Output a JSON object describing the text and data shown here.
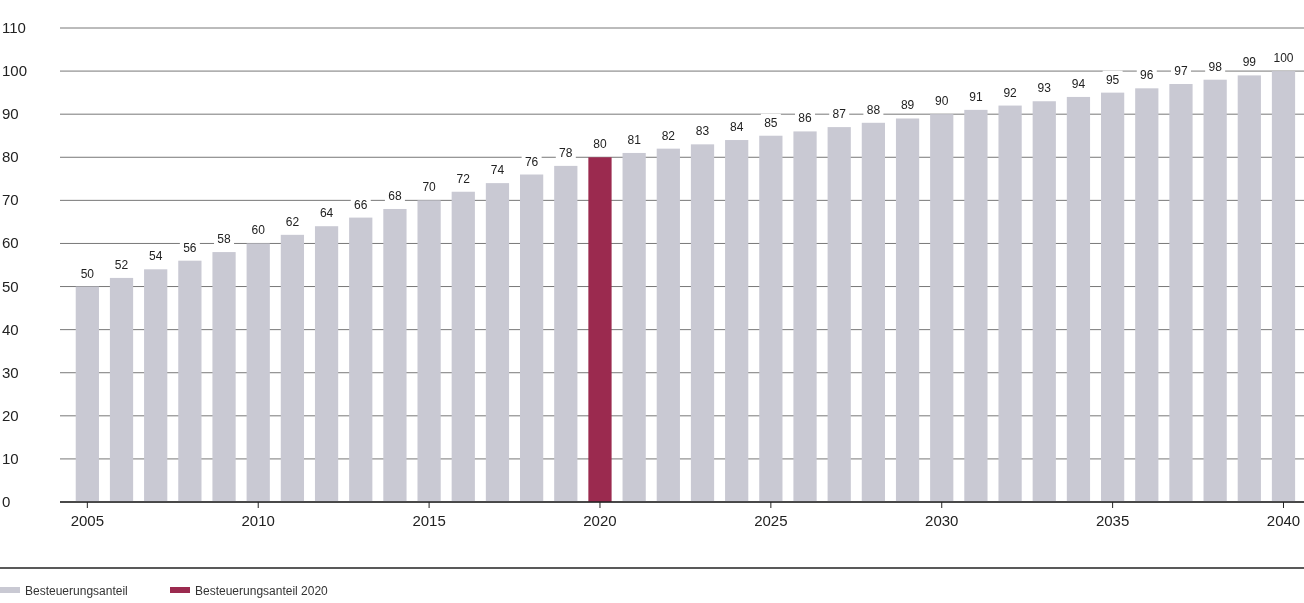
{
  "chart_data": {
    "type": "bar",
    "x": [
      2005,
      2006,
      2007,
      2008,
      2009,
      2010,
      2011,
      2012,
      2013,
      2014,
      2015,
      2016,
      2017,
      2018,
      2019,
      2020,
      2021,
      2022,
      2023,
      2024,
      2025,
      2026,
      2027,
      2028,
      2029,
      2030,
      2031,
      2032,
      2033,
      2034,
      2035,
      2036,
      2037,
      2038,
      2039,
      2040
    ],
    "series": [
      {
        "name": "Besteuerungsanteil",
        "color": "#c9c9d3",
        "values": [
          50,
          52,
          54,
          56,
          58,
          60,
          62,
          64,
          66,
          68,
          70,
          72,
          74,
          76,
          78,
          null,
          81,
          82,
          83,
          84,
          85,
          86,
          87,
          88,
          89,
          90,
          91,
          92,
          93,
          94,
          95,
          96,
          97,
          98,
          99,
          100
        ]
      },
      {
        "name": "Besteuerungsanteil 2020",
        "color": "#9b2a4f",
        "values": [
          null,
          null,
          null,
          null,
          null,
          null,
          null,
          null,
          null,
          null,
          null,
          null,
          null,
          null,
          null,
          80,
          null,
          null,
          null,
          null,
          null,
          null,
          null,
          null,
          null,
          null,
          null,
          null,
          null,
          null,
          null,
          null,
          null,
          null,
          null,
          null
        ]
      }
    ],
    "xlim": [
      2004.2,
      2040.6
    ],
    "xticks": [
      2005,
      2010,
      2015,
      2020,
      2025,
      2030,
      2035,
      2040
    ],
    "ylim": [
      0,
      110
    ],
    "yticks": [
      0,
      10,
      20,
      30,
      40,
      50,
      60,
      70,
      80,
      90,
      100,
      110
    ],
    "grid": "y",
    "data_labels": true,
    "legend": "bottom left"
  }
}
